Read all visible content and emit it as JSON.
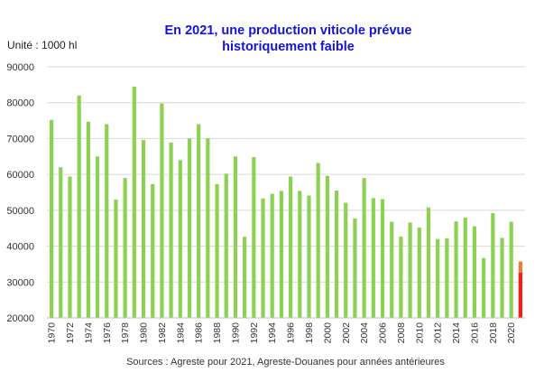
{
  "chart_data": {
    "type": "bar",
    "title": "En 2021, une production viticole prévue",
    "subtitle": "historiquement faible",
    "unit_label": "Unité : 1000 hl",
    "source": "Sources : Agreste pour 2021, Agreste-Douanes pour années antérieures",
    "ylim": [
      20000,
      90000
    ],
    "yticks": [
      "20000",
      "30000",
      "40000",
      "50000",
      "60000",
      "70000",
      "80000",
      "90000"
    ],
    "grid": true,
    "years": [
      1970,
      1971,
      1972,
      1973,
      1974,
      1975,
      1976,
      1977,
      1978,
      1979,
      1980,
      1981,
      1982,
      1983,
      1984,
      1985,
      1986,
      1987,
      1988,
      1989,
      1990,
      1991,
      1992,
      1993,
      1994,
      1995,
      1996,
      1997,
      1998,
      1999,
      2000,
      2001,
      2002,
      2003,
      2004,
      2005,
      2006,
      2007,
      2008,
      2009,
      2010,
      2011,
      2012,
      2013,
      2014,
      2015,
      2016,
      2017,
      2018,
      2019,
      2020,
      2021
    ],
    "xticks": [
      "1970",
      "1972",
      "1974",
      "1976",
      "1978",
      "1980",
      "1982",
      "1984",
      "1986",
      "1988",
      "1990",
      "1992",
      "1994",
      "1996",
      "1998",
      "2000",
      "2002",
      "2004",
      "2006",
      "2008",
      "2010",
      "2012",
      "2014",
      "2016",
      "2018",
      "2020"
    ],
    "values": [
      75200,
      62000,
      59400,
      82000,
      74700,
      65000,
      74000,
      53000,
      59000,
      84500,
      69600,
      57300,
      79800,
      68900,
      64000,
      70000,
      74000,
      70100,
      57300,
      60200,
      65000,
      42600,
      64800,
      53300,
      54600,
      55400,
      59400,
      55400,
      54100,
      63200,
      59600,
      55500,
      52100,
      47700,
      59000,
      53400,
      53100,
      46800,
      42700,
      46600,
      45200,
      50800,
      42000,
      42200,
      46900,
      48000,
      45500,
      36700,
      49200,
      42300,
      46800,
      32600
    ],
    "estimate_upper": {
      "year": 2021,
      "low": 32600,
      "high": 35700
    },
    "colors": {
      "bar": "#8cd152",
      "current": "#ff1a1a",
      "estimate_range": "#ed7d31"
    }
  }
}
